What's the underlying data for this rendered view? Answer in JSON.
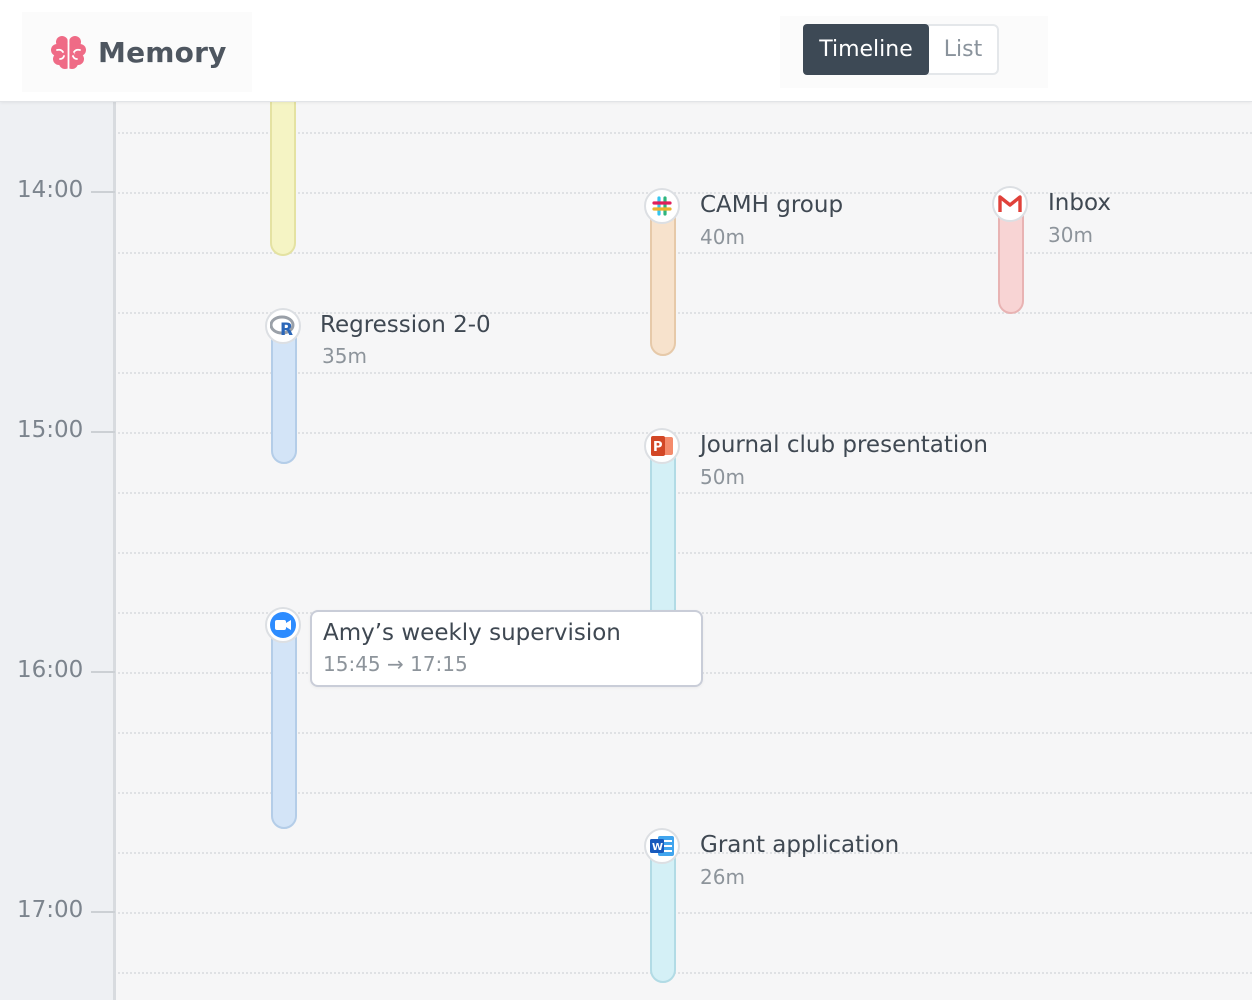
{
  "app": {
    "name": "Memory",
    "logo_icon": "brain-icon",
    "logo_color": "#ef6b86"
  },
  "view_toggle": {
    "active": "Timeline",
    "inactive": "List"
  },
  "time_labels": [
    "14:00",
    "15:00",
    "16:00",
    "17:00"
  ],
  "events": [
    {
      "id": "untitled-yellow",
      "color": "#f5f4c4",
      "border": "#e4e2a2"
    },
    {
      "id": "regression",
      "title": "Regression 2-0",
      "duration": "35m",
      "icon": "r-language-icon",
      "color": "#d3e4f7",
      "border": "#b4cde8"
    },
    {
      "id": "camh",
      "title": "CAMH group",
      "duration": "40m",
      "icon": "slack-icon",
      "color": "#f7e2cc",
      "border": "#e6c9a9"
    },
    {
      "id": "inbox",
      "title": "Inbox",
      "duration": "30m",
      "icon": "gmail-icon",
      "color": "#f8d4d4",
      "border": "#e8b3b3"
    },
    {
      "id": "journal",
      "title": "Journal club presentation",
      "duration": "50m",
      "icon": "powerpoint-icon",
      "color": "#d4f0f6",
      "border": "#b2dbe5"
    },
    {
      "id": "amy",
      "title": "Amy’s weekly supervision",
      "time_range": "15:45 → 17:15",
      "icon": "zoom-icon",
      "color": "#d3e4f7",
      "border": "#b4cde8"
    },
    {
      "id": "grant",
      "title": "Grant application",
      "duration": "26m",
      "icon": "word-icon",
      "color": "#d4f0f6",
      "border": "#b2dbe5"
    }
  ]
}
